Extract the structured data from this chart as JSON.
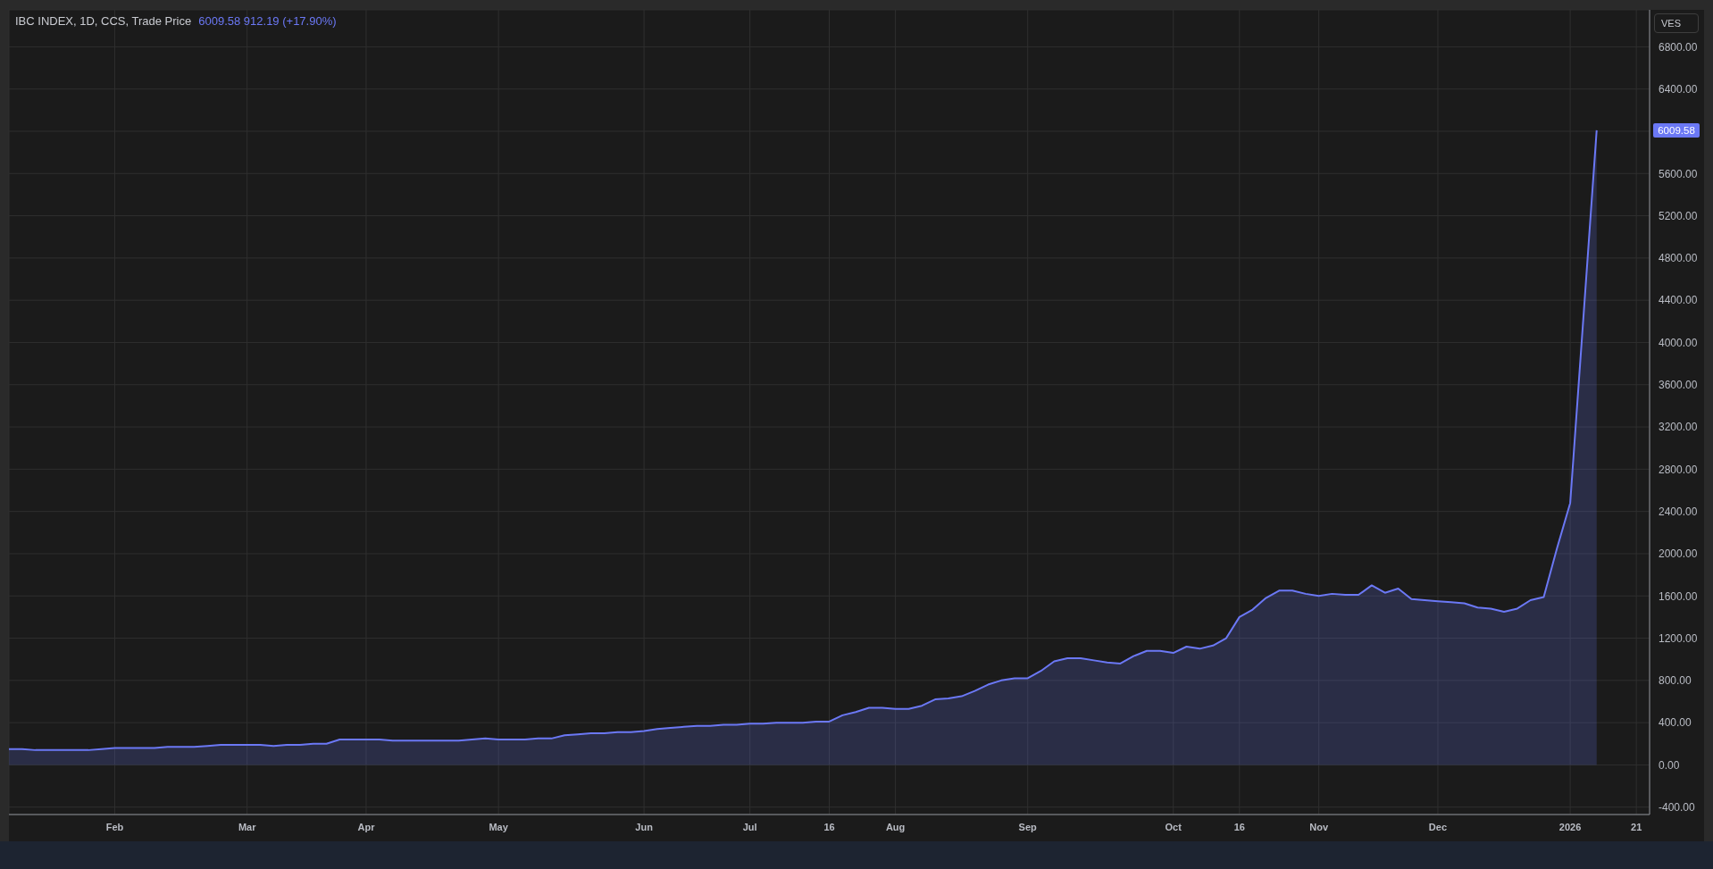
{
  "chart_data": {
    "type": "area",
    "title": "IBC INDEX, 1D, CCS, Trade Price",
    "subtitle": "6009.58 912.19 (+17.90%)",
    "ylabel": "VES",
    "categories": [
      null,
      null,
      null,
      null,
      null,
      null,
      null,
      null,
      "Feb",
      null,
      null,
      null,
      null,
      null,
      null,
      null,
      null,
      null,
      "Mar",
      null,
      null,
      null,
      null,
      null,
      null,
      null,
      null,
      "Apr",
      null,
      null,
      null,
      null,
      null,
      null,
      null,
      null,
      null,
      "May",
      null,
      null,
      null,
      null,
      null,
      null,
      null,
      null,
      null,
      null,
      "Jun",
      null,
      null,
      null,
      null,
      null,
      null,
      null,
      "Jul",
      null,
      null,
      null,
      null,
      null,
      "16",
      null,
      null,
      null,
      null,
      "Aug",
      null,
      null,
      null,
      null,
      null,
      null,
      null,
      null,
      null,
      "Sep",
      null,
      null,
      null,
      null,
      null,
      null,
      null,
      null,
      null,
      null,
      "Oct",
      null,
      null,
      null,
      null,
      "16",
      null,
      null,
      null,
      null,
      null,
      "Nov",
      null,
      null,
      null,
      null,
      null,
      null,
      null,
      null,
      "Dec",
      null,
      null,
      null,
      null,
      null,
      null,
      null,
      null,
      null,
      "2026",
      null,
      null,
      null,
      null,
      "21",
      null
    ],
    "values": [
      150,
      150,
      140,
      140,
      140,
      140,
      140,
      150,
      160,
      160,
      160,
      160,
      170,
      170,
      170,
      180,
      190,
      190,
      190,
      190,
      180,
      190,
      190,
      200,
      200,
      240,
      240,
      240,
      240,
      230,
      230,
      230,
      230,
      230,
      230,
      240,
      250,
      240,
      240,
      240,
      250,
      250,
      280,
      290,
      300,
      300,
      310,
      310,
      320,
      340,
      350,
      360,
      370,
      370,
      380,
      380,
      390,
      390,
      400,
      400,
      400,
      410,
      410,
      470,
      500,
      540,
      540,
      530,
      530,
      560,
      620,
      630,
      650,
      700,
      760,
      800,
      820,
      820,
      890,
      980,
      1010,
      1010,
      990,
      970,
      960,
      1030,
      1080,
      1080,
      1060,
      1120,
      1100,
      1130,
      1200,
      1400,
      1470,
      1580,
      1650,
      1650,
      1620,
      1600,
      1620,
      1610,
      1610,
      1700,
      1630,
      1670,
      1570,
      1560,
      1550,
      1540,
      1530,
      1490,
      1480,
      1450,
      1480,
      1560,
      1590,
      2050,
      2480,
      4240,
      6009.58,
      null,
      null,
      null,
      null
    ],
    "color": "#6b78f5",
    "ylim": [
      -470,
      7150
    ],
    "yticks": [
      {
        "value": -400,
        "label": "-400.00"
      },
      {
        "value": 0,
        "label": "0.00"
      },
      {
        "value": 400,
        "label": "400.00"
      },
      {
        "value": 800,
        "label": "800.00"
      },
      {
        "value": 1200,
        "label": "1200.00"
      },
      {
        "value": 1600,
        "label": "1600.00"
      },
      {
        "value": 2000,
        "label": "2000.00"
      },
      {
        "value": 2400,
        "label": "2400.00"
      },
      {
        "value": 2800,
        "label": "2800.00"
      },
      {
        "value": 3200,
        "label": "3200.00"
      },
      {
        "value": 3600,
        "label": "3600.00"
      },
      {
        "value": 4000,
        "label": "4000.00"
      },
      {
        "value": 4400,
        "label": "4400.00"
      },
      {
        "value": 4800,
        "label": "4800.00"
      },
      {
        "value": 5200,
        "label": "5200.00"
      },
      {
        "value": 5600,
        "label": "5600.00"
      },
      {
        "value": 6000,
        "label": null
      },
      {
        "value": 6400,
        "label": "6400.00"
      },
      {
        "value": 6800,
        "label": "6800.00"
      }
    ],
    "grid": true,
    "annotations": [
      "6009.58"
    ]
  }
}
